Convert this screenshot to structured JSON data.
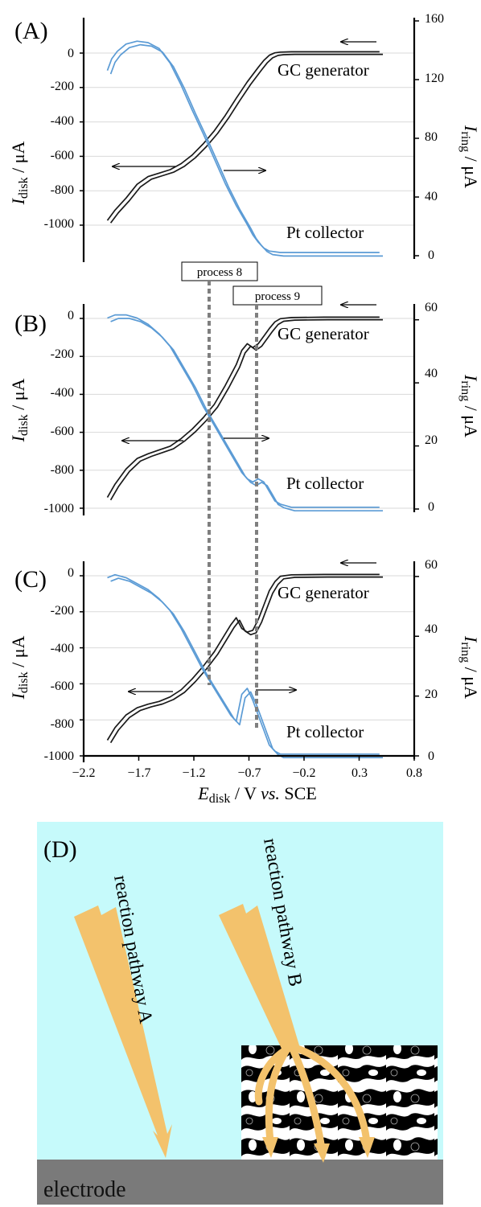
{
  "colors": {
    "disk": "#1a1a1a",
    "ring": "#5b9bd5",
    "grid": "#d9d9d9",
    "dash": "#7f7f7f",
    "solution": "#c6fafb",
    "electrode": "#7a7a7a",
    "pathway": "#f3c26c"
  },
  "axes": {
    "x_label_main": "E",
    "x_label_sub": "disk",
    "x_label_rest": " / V ",
    "x_label_italic": "vs.",
    "x_label_end": " SCE",
    "y_left_main": "I",
    "y_left_sub": "disk",
    "y_left_rest": " / μA",
    "y_right_main": "I",
    "y_right_sub": "ring",
    "y_right_rest": " / μA"
  },
  "chart_data": [
    {
      "panel": "(A)",
      "type": "line",
      "xlim": [
        -2.2,
        0.8
      ],
      "ylim_left": [
        -1180,
        50
      ],
      "ylim_right": [
        0,
        160
      ],
      "left_ticks": [
        "0",
        "-200",
        "-400",
        "-600",
        "-800",
        "-1000"
      ],
      "right_ticks": [
        "160",
        "120",
        "80",
        "40",
        "0"
      ],
      "label_generator": "GC generator",
      "label_collector": "Pt collector",
      "series": [
        {
          "axis": "left",
          "x": [
            -1.97,
            -1.9,
            -1.8,
            -1.7,
            -1.6,
            -1.5,
            -1.4,
            -1.3,
            -1.2,
            -1.1,
            -1.0,
            -0.9,
            -0.8,
            -0.7,
            -0.6,
            -0.55,
            -0.5,
            -0.45,
            -0.4,
            -0.3,
            -0.2,
            0.0,
            0.2,
            0.5
          ],
          "y": [
            -980,
            -920,
            -850,
            -770,
            -725,
            -705,
            -685,
            -650,
            -600,
            -535,
            -460,
            -370,
            -270,
            -175,
            -90,
            -50,
            -20,
            -6,
            -2,
            0,
            0,
            0,
            0,
            0
          ]
        },
        {
          "axis": "right",
          "x": [
            -1.97,
            -1.93,
            -1.88,
            -1.8,
            -1.7,
            -1.6,
            -1.5,
            -1.4,
            -1.3,
            -1.2,
            -1.1,
            -1.0,
            -0.9,
            -0.8,
            -0.7,
            -0.65,
            -0.6,
            -0.55,
            -0.5,
            -0.4,
            -0.2,
            0.0,
            0.2,
            0.5
          ],
          "y": [
            125,
            133,
            138,
            143,
            145,
            144,
            140,
            130,
            115,
            98,
            82,
            65,
            48,
            33,
            20,
            13,
            8,
            4,
            2,
            1,
            1,
            1,
            1,
            1
          ]
        }
      ]
    },
    {
      "panel": "(B)",
      "type": "line",
      "xlim": [
        -2.2,
        0.8
      ],
      "ylim_left": [
        -1000,
        50
      ],
      "ylim_right": [
        0,
        64
      ],
      "left_ticks": [
        "0",
        "-200",
        "-400",
        "-600",
        "-800",
        "-1000"
      ],
      "right_ticks": [
        "60",
        "40",
        "20",
        "0"
      ],
      "label_generator": "GC generator",
      "label_collector": "Pt collector",
      "annotations": [
        "process 8",
        "process 9"
      ],
      "series": [
        {
          "axis": "left",
          "x": [
            -1.97,
            -1.9,
            -1.8,
            -1.7,
            -1.6,
            -1.5,
            -1.4,
            -1.3,
            -1.2,
            -1.1,
            -1.0,
            -0.9,
            -0.8,
            -0.75,
            -0.7,
            -0.65,
            -0.6,
            -0.55,
            -0.5,
            -0.45,
            -0.4,
            -0.3,
            0.0,
            0.5
          ],
          "y": [
            -950,
            -880,
            -800,
            -745,
            -720,
            -700,
            -680,
            -640,
            -590,
            -530,
            -460,
            -360,
            -250,
            -175,
            -140,
            -160,
            -140,
            -100,
            -60,
            -25,
            -8,
            -2,
            0,
            0
          ]
        },
        {
          "axis": "right",
          "x": [
            -1.97,
            -1.9,
            -1.8,
            -1.7,
            -1.6,
            -1.5,
            -1.4,
            -1.3,
            -1.2,
            -1.1,
            -1.0,
            -0.9,
            -0.8,
            -0.75,
            -0.7,
            -0.65,
            -0.6,
            -0.55,
            -0.5,
            -0.45,
            -0.4,
            -0.3,
            0.0,
            0.5
          ],
          "y": [
            60,
            61,
            61,
            60,
            58,
            55,
            51,
            45,
            39,
            32,
            26,
            20,
            14,
            11,
            9,
            8,
            9,
            8,
            5,
            2,
            1,
            0,
            0,
            0
          ]
        }
      ]
    },
    {
      "panel": "(C)",
      "type": "line",
      "xlim": [
        -2.2,
        0.8
      ],
      "ylim_left": [
        -1000,
        50
      ],
      "ylim_right": [
        0,
        64
      ],
      "left_ticks": [
        "0",
        "-200",
        "-400",
        "-600",
        "-800",
        "-1000"
      ],
      "right_ticks": [
        "60",
        "40",
        "20",
        "0"
      ],
      "x_ticks": [
        "−2.2",
        "−1.7",
        "−1.2",
        "−0.7",
        "−0.2",
        "0.3",
        "0.8"
      ],
      "label_generator": "GC generator",
      "label_collector": "Pt collector",
      "series": [
        {
          "axis": "left",
          "x": [
            -1.97,
            -1.9,
            -1.8,
            -1.7,
            -1.6,
            -1.5,
            -1.4,
            -1.3,
            -1.2,
            -1.1,
            -1.0,
            -0.9,
            -0.85,
            -0.8,
            -0.75,
            -0.7,
            -0.65,
            -0.6,
            -0.55,
            -0.5,
            -0.45,
            -0.4,
            -0.3,
            0.0,
            0.5
          ],
          "y": [
            -920,
            -850,
            -780,
            -740,
            -720,
            -705,
            -680,
            -640,
            -580,
            -510,
            -430,
            -330,
            -280,
            -240,
            -300,
            -320,
            -310,
            -250,
            -170,
            -90,
            -40,
            -10,
            -2,
            0,
            0
          ]
        },
        {
          "axis": "right",
          "x": [
            -1.97,
            -1.9,
            -1.8,
            -1.7,
            -1.6,
            -1.5,
            -1.4,
            -1.3,
            -1.2,
            -1.1,
            -1.0,
            -0.9,
            -0.85,
            -0.8,
            -0.75,
            -0.7,
            -0.65,
            -0.6,
            -0.55,
            -0.5,
            -0.45,
            -0.4,
            -0.3,
            0.0,
            0.5
          ],
          "y": [
            59,
            60,
            59,
            57,
            55,
            52,
            48,
            42,
            35,
            28,
            22,
            16,
            13,
            11,
            20,
            22,
            18,
            13,
            8,
            3,
            1,
            0,
            0,
            0,
            0
          ]
        }
      ]
    }
  ],
  "diagram": {
    "panel": "(D)",
    "pathway_a": "reaction pathway A",
    "pathway_b": "reaction pathway B",
    "electrode": "electrode"
  }
}
